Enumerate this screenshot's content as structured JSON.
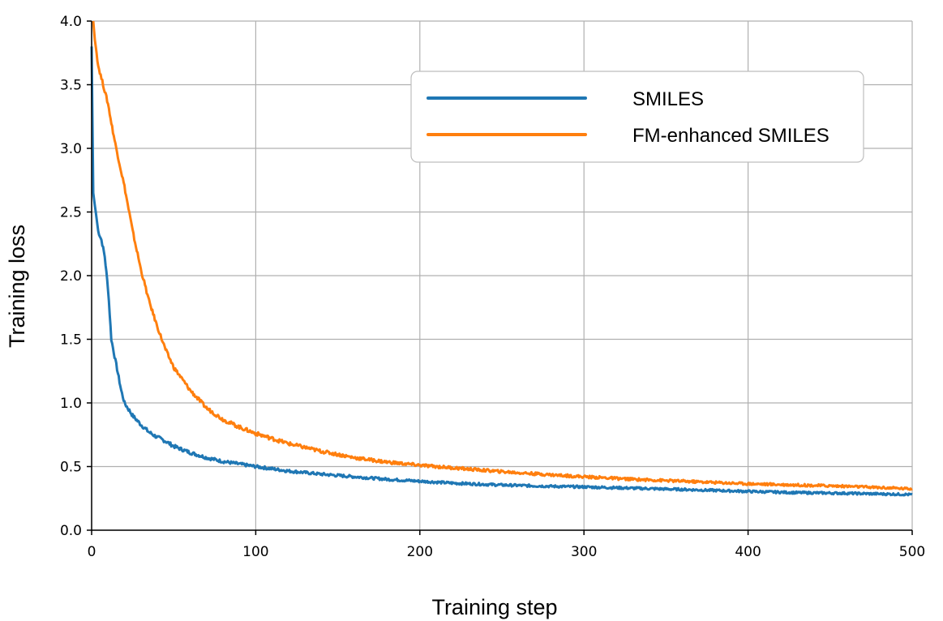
{
  "chart_data": {
    "type": "line",
    "title": "",
    "xlabel": "Training step",
    "ylabel": "Training loss",
    "xlim": [
      0,
      500
    ],
    "ylim": [
      0,
      4
    ],
    "xticks": [
      0,
      100,
      200,
      300,
      400,
      500
    ],
    "xtick_labels": [
      "0",
      "100",
      "200",
      "300",
      "400",
      "500"
    ],
    "yticks": [
      0,
      0.5,
      1,
      1.5,
      2,
      2.5,
      3,
      3.5,
      4
    ],
    "ytick_labels": [
      "0.0",
      "0.5",
      "1.0",
      "1.5",
      "2.0",
      "2.5",
      "3.0",
      "3.5",
      "4.0"
    ],
    "grid": true,
    "legend_position": "top-right",
    "series": [
      {
        "name": "SMILES",
        "color": "#1f77b4",
        "x": [
          0,
          1,
          2,
          4,
          6,
          8,
          10,
          12,
          15,
          18,
          20,
          25,
          30,
          35,
          40,
          45,
          50,
          60,
          70,
          80,
          90,
          100,
          120,
          140,
          160,
          180,
          200,
          220,
          250,
          280,
          300,
          330,
          360,
          400,
          430,
          460,
          480,
          500
        ],
        "y": [
          3.8,
          2.65,
          2.55,
          2.35,
          2.28,
          2.15,
          1.9,
          1.5,
          1.3,
          1.1,
          1.0,
          0.9,
          0.83,
          0.77,
          0.73,
          0.7,
          0.66,
          0.61,
          0.57,
          0.54,
          0.52,
          0.5,
          0.465,
          0.44,
          0.42,
          0.4,
          0.385,
          0.37,
          0.355,
          0.345,
          0.34,
          0.33,
          0.32,
          0.305,
          0.295,
          0.29,
          0.285,
          0.28
        ]
      },
      {
        "name": "FM-enhanced SMILES",
        "color": "#ff7f0e",
        "x": [
          1,
          2,
          4,
          6,
          8,
          10,
          12,
          15,
          20,
          25,
          30,
          35,
          40,
          45,
          50,
          60,
          70,
          80,
          90,
          100,
          120,
          140,
          160,
          180,
          200,
          220,
          250,
          280,
          300,
          330,
          360,
          400,
          430,
          460,
          480,
          500
        ],
        "y": [
          4.0,
          3.85,
          3.65,
          3.55,
          3.45,
          3.35,
          3.2,
          3.0,
          2.7,
          2.35,
          2.05,
          1.8,
          1.6,
          1.42,
          1.28,
          1.1,
          0.96,
          0.87,
          0.81,
          0.76,
          0.68,
          0.62,
          0.57,
          0.535,
          0.51,
          0.49,
          0.46,
          0.435,
          0.42,
          0.4,
          0.385,
          0.365,
          0.355,
          0.345,
          0.335,
          0.325
        ]
      }
    ]
  }
}
